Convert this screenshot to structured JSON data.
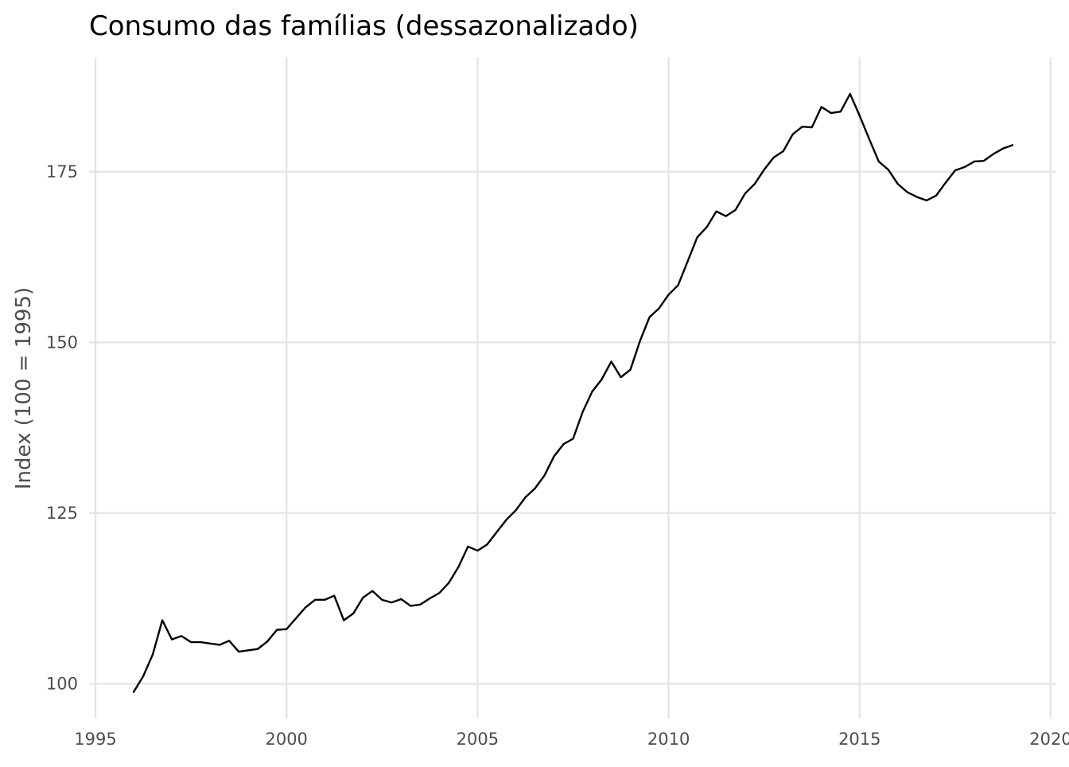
{
  "chart_data": {
    "type": "line",
    "title": "Consumo das famílias (dessazonalizado)",
    "xlabel": "",
    "ylabel": "Index (100 = 1995)",
    "xlim": [
      1995,
      2020
    ],
    "ylim": [
      95.5,
      192
    ],
    "x_ticks": [
      1995,
      2000,
      2005,
      2010,
      2015,
      2020
    ],
    "x_tick_labels": [
      "1995",
      "2000",
      "2005",
      "2010",
      "2015",
      "2020"
    ],
    "y_ticks": [
      100,
      125,
      150,
      175
    ],
    "y_tick_labels": [
      "100",
      "125",
      "150",
      "175"
    ],
    "grid": true,
    "legend": "none",
    "series": [
      {
        "color": "#000000",
        "x": [
          1996.0,
          1996.25,
          1996.5,
          1996.75,
          1997.0,
          1997.25,
          1997.5,
          1997.75,
          1998.0,
          1998.25,
          1998.5,
          1998.75,
          1999.0,
          1999.25,
          1999.5,
          1999.75,
          2000.0,
          2000.25,
          2000.5,
          2000.75,
          2001.0,
          2001.25,
          2001.5,
          2001.75,
          2002.0,
          2002.25,
          2002.5,
          2002.75,
          2003.0,
          2003.25,
          2003.5,
          2003.75,
          2004.0,
          2004.25,
          2004.5,
          2004.75,
          2005.0,
          2005.25,
          2005.5,
          2005.75,
          2006.0,
          2006.25,
          2006.5,
          2006.75,
          2007.0,
          2007.25,
          2007.5,
          2007.75,
          2008.0,
          2008.25,
          2008.5,
          2008.75,
          2009.0,
          2009.25,
          2009.5,
          2009.75,
          2010.0,
          2010.25,
          2010.5,
          2010.75,
          2011.0,
          2011.25,
          2011.5,
          2011.75,
          2012.0,
          2012.25,
          2012.5,
          2012.75,
          2013.0,
          2013.25,
          2013.5,
          2013.75,
          2014.0,
          2014.25,
          2014.5,
          2014.75,
          2015.0,
          2015.25,
          2015.5,
          2015.75,
          2016.0,
          2016.25,
          2016.5,
          2016.75,
          2017.0,
          2017.25,
          2017.5,
          2017.75,
          2018.0,
          2018.25,
          2018.5,
          2018.75,
          2019.0
        ],
        "y": [
          98.8,
          101.1,
          104.3,
          109.3,
          106.5,
          107.0,
          106.1,
          106.1,
          105.9,
          105.7,
          106.3,
          104.7,
          104.9,
          105.1,
          106.2,
          107.9,
          108.0,
          109.6,
          111.2,
          112.3,
          112.3,
          112.9,
          109.3,
          110.3,
          112.6,
          113.6,
          112.3,
          111.9,
          112.4,
          111.4,
          111.6,
          112.5,
          113.3,
          114.8,
          117.1,
          120.1,
          119.5,
          120.4,
          122.2,
          124.0,
          125.4,
          127.3,
          128.6,
          130.5,
          133.3,
          135.1,
          135.9,
          139.8,
          142.8,
          144.6,
          147.2,
          144.9,
          146.0,
          150.2,
          153.7,
          155.0,
          157.0,
          158.4,
          161.9,
          165.4,
          166.9,
          169.2,
          168.5,
          169.4,
          171.8,
          173.2,
          175.3,
          177.1,
          178.0,
          180.5,
          181.6,
          181.5,
          184.5,
          183.6,
          183.8,
          186.4,
          183.2,
          179.8,
          176.5,
          175.3,
          173.2,
          172.0,
          171.3,
          170.8,
          171.5,
          173.4,
          175.2,
          175.7,
          176.5,
          176.6,
          177.6,
          178.4,
          178.9
        ]
      }
    ]
  }
}
